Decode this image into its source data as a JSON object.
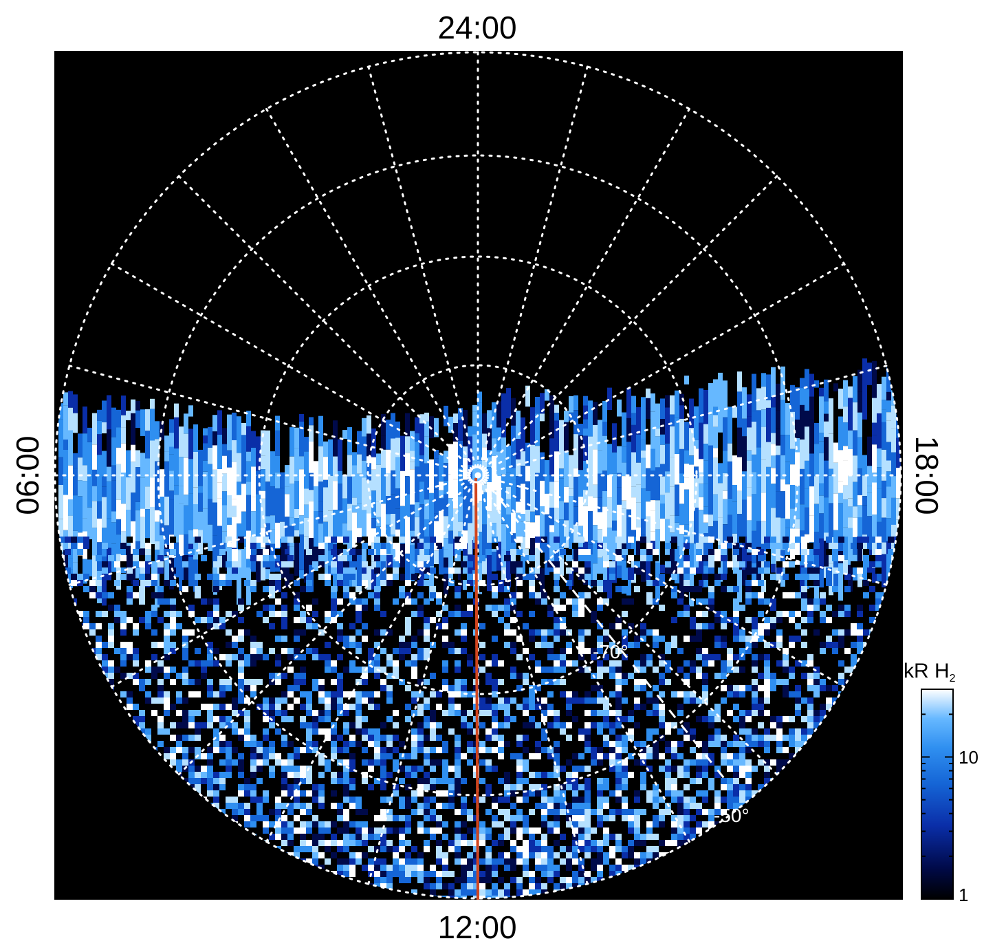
{
  "labels": {
    "lt_top": "24:00",
    "lt_bottom": "12:00",
    "lt_left": "06:00",
    "lt_right": "18:00",
    "lat_inner": "-70°",
    "lat_outer": "-50°"
  },
  "colorbar": {
    "title": "kR H",
    "title_sub": "2",
    "tick_10": "10",
    "tick_1": "1",
    "scale": "log",
    "range": [
      1,
      30
    ]
  },
  "colors": {
    "background": "#000000",
    "grid": "#ffffff",
    "meridian_line": "#d2451e",
    "cmap": [
      "#000000",
      "#000a4a",
      "#0a2ea8",
      "#1565d6",
      "#2f8ff0",
      "#66b8ff",
      "#b5e0ff",
      "#ffffff"
    ]
  }
}
